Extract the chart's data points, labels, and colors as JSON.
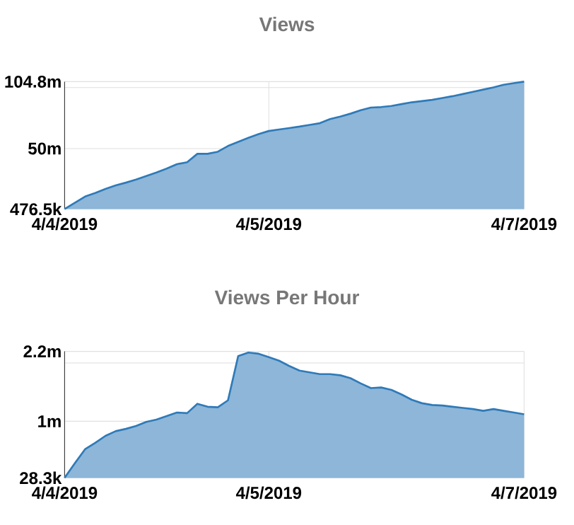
{
  "chart_data": [
    {
      "type": "area",
      "title": "Views",
      "color": "#2f7ab8",
      "grid": true,
      "categories": [
        "4/4/2019",
        null,
        null,
        null,
        null,
        null,
        null,
        null,
        null,
        null,
        null,
        null,
        null,
        null,
        null,
        null,
        null,
        null,
        null,
        null,
        "4/5/2019",
        null,
        null,
        null,
        null,
        null,
        null,
        null,
        null,
        null,
        null,
        null,
        null,
        null,
        null,
        null,
        null,
        null,
        null,
        null,
        null,
        null,
        null,
        null,
        null,
        "4/7/2019"
      ],
      "values": [
        500000.0,
        5600000.0,
        10700000.0,
        13600000.0,
        17000000.0,
        19800000.0,
        22100000.0,
        24600000.0,
        27500000.0,
        30400000.0,
        33600000.0,
        37200000.0,
        38800000.0,
        45700000.0,
        45700000.0,
        47400000.0,
        52100000.0,
        55500000.0,
        58800000.0,
        61800000.0,
        64400000.0,
        65600000.0,
        66800000.0,
        68000000.0,
        69400000.0,
        70800000.0,
        74200000.0,
        76200000.0,
        78600000.0,
        81400000.0,
        83600000.0,
        84000000.0,
        84900000.0,
        86400000.0,
        87900000.0,
        88900000.0,
        89900000.0,
        91400000.0,
        92900000.0,
        94700000.0,
        96500000.0,
        98300000.0,
        100100000.0,
        102300000.0,
        103600000.0,
        104800000.0
      ],
      "ylim": [
        476500,
        104800000
      ],
      "yticks": [
        {
          "value": 476500,
          "label": "476.5k"
        },
        {
          "value": 50000000,
          "label": "50m"
        },
        {
          "value": 100000000,
          "label": null
        },
        {
          "value": 104800000,
          "label": "104.8m"
        }
      ]
    },
    {
      "type": "area",
      "title": "Views Per Hour",
      "color": "#2f7ab8",
      "grid": true,
      "categories": [
        "4/4/2019",
        null,
        null,
        null,
        null,
        null,
        null,
        null,
        null,
        null,
        null,
        null,
        null,
        null,
        null,
        null,
        null,
        null,
        null,
        null,
        "4/5/2019",
        null,
        null,
        null,
        null,
        null,
        null,
        null,
        null,
        null,
        null,
        null,
        null,
        null,
        null,
        null,
        null,
        null,
        null,
        null,
        null,
        null,
        null,
        null,
        null,
        "4/7/2019"
      ],
      "values": [
        30000.0,
        280000.0,
        520000.0,
        630000.0,
        750000.0,
        830000.0,
        870000.0,
        920000.0,
        990000.0,
        1030000.0,
        1090000.0,
        1150000.0,
        1140000.0,
        1300000.0,
        1250000.0,
        1240000.0,
        1360000.0,
        2120000.0,
        2180000.0,
        2160000.0,
        2100000.0,
        2040000.0,
        1950000.0,
        1870000.0,
        1840000.0,
        1810000.0,
        1810000.0,
        1790000.0,
        1740000.0,
        1650000.0,
        1570000.0,
        1580000.0,
        1540000.0,
        1460000.0,
        1370000.0,
        1310000.0,
        1280000.0,
        1270000.0,
        1250000.0,
        1230000.0,
        1210000.0,
        1180000.0,
        1210000.0,
        1180000.0,
        1150000.0,
        1120000.0
      ],
      "ylim": [
        28300,
        2200000
      ],
      "yticks": [
        {
          "value": 28300,
          "label": "28.3k"
        },
        {
          "value": 1000000,
          "label": "1m"
        },
        {
          "value": 2000000,
          "label": null
        },
        {
          "value": 2200000,
          "label": "2.2m"
        }
      ]
    }
  ]
}
